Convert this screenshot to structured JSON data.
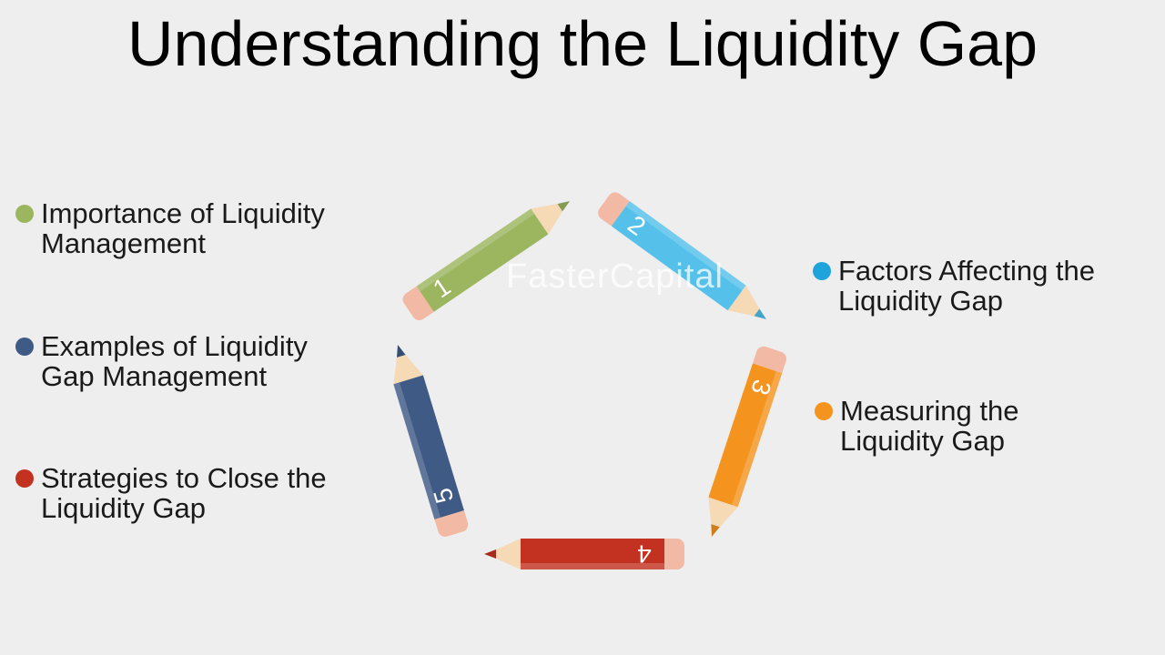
{
  "title": "Understanding the Liquidity Gap",
  "watermark": "FasterCapital",
  "colors": {
    "green": "#9cb660",
    "blue": "#55c1ea",
    "orange": "#f4941f",
    "red": "#c33220",
    "navy": "#3e5a85"
  },
  "items": [
    {
      "label": "Importance of Liquidity\nManagement",
      "color": "#9cb660"
    },
    {
      "label": "Factors Affecting the\nLiquidity Gap",
      "color": "#1ea4db"
    },
    {
      "label": "Measuring the\nLiquidity Gap",
      "color": "#f4941f"
    },
    {
      "label": "Examples of Liquidity\nGap Management",
      "color": "#3e5a85"
    },
    {
      "label": "Strategies to Close the\nLiquidity Gap",
      "color": "#c33220"
    }
  ],
  "pencils": [
    {
      "number": "1",
      "color": "#9cb660"
    },
    {
      "number": "2",
      "color": "#55c1ea"
    },
    {
      "number": "3",
      "color": "#f4941f"
    },
    {
      "number": "4",
      "color": "#c33220"
    },
    {
      "number": "5",
      "color": "#3e5a85"
    }
  ]
}
